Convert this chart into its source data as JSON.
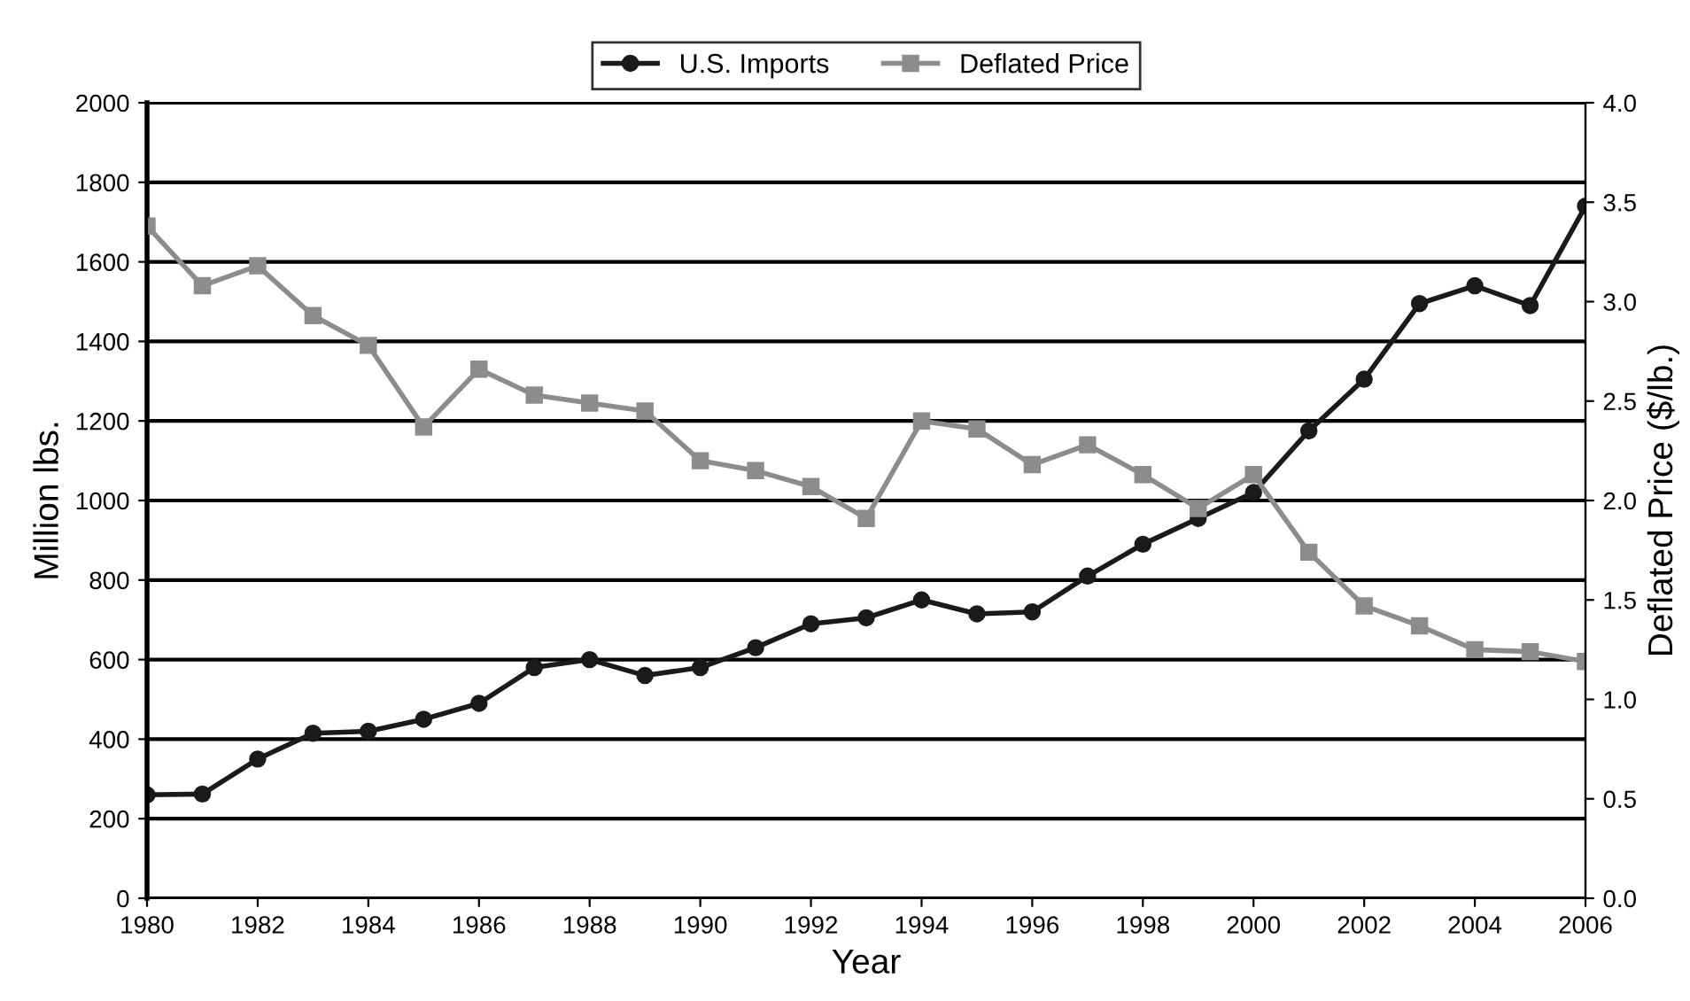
{
  "chart_data": {
    "type": "line",
    "xlabel": "Year",
    "ylabel": "Million lbs.",
    "y2label": "Deflated Price ($/lb.)",
    "x": [
      1980,
      1981,
      1982,
      1983,
      1984,
      1985,
      1986,
      1987,
      1988,
      1989,
      1990,
      1991,
      1992,
      1993,
      1994,
      1995,
      1996,
      1997,
      1998,
      1999,
      2000,
      2001,
      2002,
      2003,
      2004,
      2005,
      2006
    ],
    "series": [
      {
        "name": "U.S. Imports",
        "color": "#1a1a1a",
        "marker": "circle",
        "values": [
          260,
          262,
          350,
          415,
          420,
          450,
          490,
          580,
          600,
          560,
          580,
          630,
          690,
          705,
          750,
          715,
          720,
          810,
          890,
          955,
          1020,
          1175,
          1305,
          1495,
          1540,
          1490,
          1740
        ]
      },
      {
        "name": "Deflated Price",
        "color": "#8c8c8c",
        "marker": "square",
        "axis": "y2",
        "values": [
          3.38,
          3.08,
          3.18,
          2.93,
          2.78,
          2.37,
          2.66,
          2.53,
          2.49,
          2.45,
          2.2,
          2.15,
          2.07,
          1.91,
          2.4,
          2.36,
          2.18,
          2.28,
          2.13,
          1.96,
          2.13,
          1.74,
          1.47,
          1.37,
          1.25,
          1.24,
          1.19
        ]
      }
    ],
    "xlim": [
      1980,
      2006
    ],
    "xticks": [
      1980,
      1982,
      1984,
      1986,
      1988,
      1990,
      1992,
      1994,
      1996,
      1998,
      2000,
      2002,
      2004,
      2006
    ],
    "ylim": [
      0,
      2000
    ],
    "yticks": [
      0,
      200,
      400,
      600,
      800,
      1000,
      1200,
      1400,
      1600,
      1800,
      2000
    ],
    "y2lim": [
      0.0,
      4.0
    ],
    "y2ticks": [
      {
        "value": 0,
        "label": "0.0"
      },
      {
        "value": 0.5,
        "label": "0.5"
      },
      {
        "value": 1,
        "label": "1.0"
      },
      {
        "value": 1.5,
        "label": "1.5"
      },
      {
        "value": 2,
        "label": "2.0"
      },
      {
        "value": 2.5,
        "label": "2.5"
      },
      {
        "value": 3,
        "label": "3.0"
      },
      {
        "value": 3.5,
        "label": "3.5"
      },
      {
        "value": 4,
        "label": "4.0"
      }
    ],
    "grid": "y",
    "legend": "top",
    "line_style": "solid"
  }
}
